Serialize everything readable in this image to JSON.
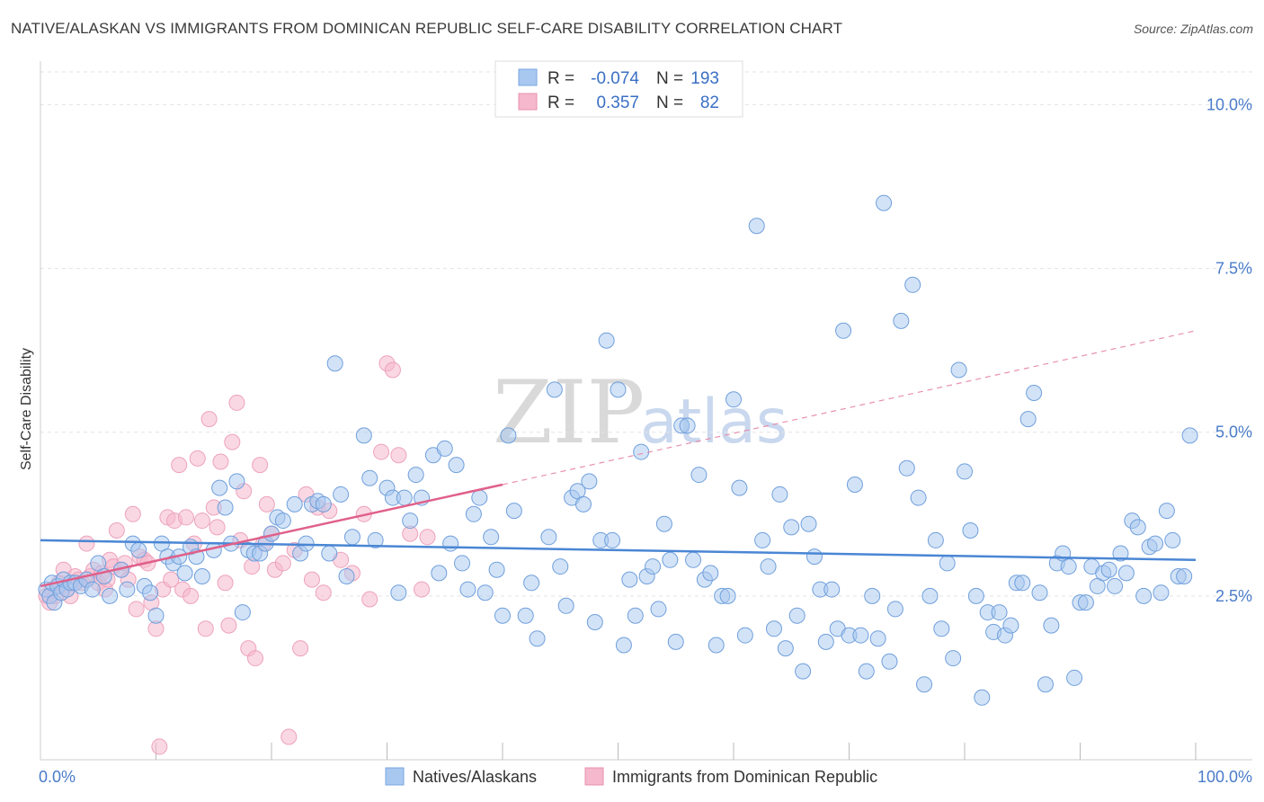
{
  "title": "NATIVE/ALASKAN VS IMMIGRANTS FROM DOMINICAN REPUBLIC SELF-CARE DISABILITY CORRELATION CHART",
  "source": "Source: ZipAtlas.com",
  "watermark": {
    "zip": "ZIP",
    "atlas": "atlas"
  },
  "legend_top": {
    "rows": [
      {
        "r_label": "R =",
        "r_value": "-0.074",
        "n_label": "N =",
        "n_value": "193",
        "color": "#a8c8f0"
      },
      {
        "r_label": "R =",
        "r_value": "0.357",
        "n_label": "N =",
        "n_value": "82",
        "color": "#f5b8cc"
      }
    ]
  },
  "legend_bottom": {
    "items": [
      {
        "label": "Natives/Alaskans",
        "color": "#a8c8f0"
      },
      {
        "label": "Immigrants from Dominican Republic",
        "color": "#f5b8cc"
      }
    ]
  },
  "chart_data": {
    "type": "scatter",
    "ylabel": "Self-Care Disability",
    "xlim": [
      0,
      100
    ],
    "ylim": [
      0,
      10.5
    ],
    "x_tick_labels": {
      "left": "0.0%",
      "right": "100.0%"
    },
    "y_ticks": [
      {
        "value": 2.5,
        "label": "2.5%"
      },
      {
        "value": 5.0,
        "label": "5.0%"
      },
      {
        "value": 7.5,
        "label": "7.5%"
      },
      {
        "value": 10.0,
        "label": "10.0%"
      }
    ],
    "colors": {
      "blue": "#4a86d4",
      "blue_fill": "#a8c8f0",
      "pink": "#e0608a",
      "pink_fill": "#f5b8cc"
    },
    "series": [
      {
        "name": "Natives/Alaskans",
        "trend": {
          "x0": 0,
          "y0": 3.35,
          "x1": 100,
          "y1": 3.05
        },
        "points": [
          [
            0.5,
            2.6
          ],
          [
            0.8,
            2.5
          ],
          [
            1.0,
            2.7
          ],
          [
            1.2,
            2.4
          ],
          [
            1.5,
            2.65
          ],
          [
            1.8,
            2.55
          ],
          [
            2.0,
            2.75
          ],
          [
            2.3,
            2.6
          ],
          [
            2.6,
            2.7
          ],
          [
            3.0,
            2.7
          ],
          [
            3.5,
            2.65
          ],
          [
            4.0,
            2.75
          ],
          [
            4.5,
            2.6
          ],
          [
            5.0,
            3.0
          ],
          [
            5.5,
            2.8
          ],
          [
            6.0,
            2.5
          ],
          [
            7.0,
            2.9
          ],
          [
            7.5,
            2.6
          ],
          [
            8.0,
            3.3
          ],
          [
            8.5,
            3.2
          ],
          [
            9.0,
            2.65
          ],
          [
            9.5,
            2.55
          ],
          [
            10.0,
            2.2
          ],
          [
            10.5,
            3.3
          ],
          [
            11.0,
            3.1
          ],
          [
            11.5,
            3.0
          ],
          [
            12.0,
            3.1
          ],
          [
            12.5,
            2.85
          ],
          [
            13.0,
            3.25
          ],
          [
            13.5,
            3.1
          ],
          [
            14.0,
            2.8
          ],
          [
            15.0,
            3.2
          ],
          [
            15.5,
            4.15
          ],
          [
            16.0,
            3.85
          ],
          [
            16.5,
            3.3
          ],
          [
            17.0,
            4.25
          ],
          [
            17.5,
            2.25
          ],
          [
            18.0,
            3.2
          ],
          [
            18.5,
            3.15
          ],
          [
            19.0,
            3.15
          ],
          [
            19.5,
            3.3
          ],
          [
            20.0,
            3.45
          ],
          [
            20.5,
            3.7
          ],
          [
            21.0,
            3.65
          ],
          [
            22.0,
            3.9
          ],
          [
            22.5,
            3.15
          ],
          [
            23.0,
            3.3
          ],
          [
            23.5,
            3.9
          ],
          [
            24.0,
            3.95
          ],
          [
            24.5,
            3.9
          ],
          [
            25.0,
            3.15
          ],
          [
            25.5,
            6.05
          ],
          [
            26.0,
            4.05
          ],
          [
            26.5,
            2.8
          ],
          [
            27.0,
            3.4
          ],
          [
            28.0,
            4.95
          ],
          [
            28.5,
            4.3
          ],
          [
            29.0,
            3.35
          ],
          [
            30.0,
            4.15
          ],
          [
            30.5,
            4.0
          ],
          [
            31.0,
            2.55
          ],
          [
            31.5,
            4.0
          ],
          [
            32.0,
            3.65
          ],
          [
            32.5,
            4.35
          ],
          [
            33.0,
            4.0
          ],
          [
            34.0,
            4.65
          ],
          [
            34.5,
            2.85
          ],
          [
            35.0,
            4.75
          ],
          [
            35.5,
            3.3
          ],
          [
            36.0,
            4.5
          ],
          [
            36.5,
            3.0
          ],
          [
            37.0,
            2.6
          ],
          [
            37.5,
            3.75
          ],
          [
            38.0,
            4.0
          ],
          [
            38.5,
            2.55
          ],
          [
            39.0,
            3.4
          ],
          [
            39.5,
            2.9
          ],
          [
            40.0,
            2.2
          ],
          [
            40.5,
            4.95
          ],
          [
            41.0,
            3.8
          ],
          [
            42.0,
            2.2
          ],
          [
            42.5,
            2.7
          ],
          [
            43.0,
            1.85
          ],
          [
            44.0,
            3.4
          ],
          [
            44.5,
            5.65
          ],
          [
            45.0,
            2.95
          ],
          [
            45.5,
            2.35
          ],
          [
            46.0,
            4.0
          ],
          [
            46.5,
            4.1
          ],
          [
            47.0,
            3.9
          ],
          [
            47.5,
            4.25
          ],
          [
            48.0,
            2.1
          ],
          [
            48.5,
            3.35
          ],
          [
            49.0,
            6.4
          ],
          [
            49.5,
            3.35
          ],
          [
            50.0,
            5.65
          ],
          [
            50.5,
            1.75
          ],
          [
            51.0,
            2.75
          ],
          [
            51.5,
            2.2
          ],
          [
            52.0,
            4.7
          ],
          [
            52.5,
            2.8
          ],
          [
            53.0,
            2.95
          ],
          [
            53.5,
            2.3
          ],
          [
            54.0,
            3.6
          ],
          [
            54.5,
            3.05
          ],
          [
            55.0,
            1.8
          ],
          [
            55.5,
            5.1
          ],
          [
            56.0,
            5.1
          ],
          [
            56.5,
            3.05
          ],
          [
            57.0,
            4.35
          ],
          [
            57.5,
            2.75
          ],
          [
            58.0,
            2.85
          ],
          [
            58.5,
            1.75
          ],
          [
            59.0,
            2.5
          ],
          [
            59.5,
            2.5
          ],
          [
            60.0,
            5.5
          ],
          [
            60.5,
            4.15
          ],
          [
            61.0,
            1.9
          ],
          [
            62.0,
            8.15
          ],
          [
            62.5,
            3.35
          ],
          [
            63.0,
            2.95
          ],
          [
            63.5,
            2.0
          ],
          [
            64.0,
            4.05
          ],
          [
            64.5,
            1.7
          ],
          [
            65.0,
            3.55
          ],
          [
            65.5,
            2.2
          ],
          [
            66.0,
            1.35
          ],
          [
            66.5,
            3.6
          ],
          [
            67.0,
            3.1
          ],
          [
            67.5,
            2.6
          ],
          [
            68.0,
            1.8
          ],
          [
            68.5,
            2.6
          ],
          [
            69.0,
            2.0
          ],
          [
            69.5,
            6.55
          ],
          [
            70.0,
            1.9
          ],
          [
            70.5,
            4.2
          ],
          [
            71.0,
            1.9
          ],
          [
            71.5,
            1.35
          ],
          [
            72.0,
            2.5
          ],
          [
            72.5,
            1.85
          ],
          [
            73.0,
            8.5
          ],
          [
            73.5,
            1.5
          ],
          [
            74.0,
            2.3
          ],
          [
            74.5,
            6.7
          ],
          [
            75.0,
            4.45
          ],
          [
            75.5,
            7.25
          ],
          [
            76.0,
            4.0
          ],
          [
            76.5,
            1.15
          ],
          [
            77.0,
            2.5
          ],
          [
            77.5,
            3.35
          ],
          [
            78.0,
            2.0
          ],
          [
            78.5,
            3.0
          ],
          [
            79.0,
            1.55
          ],
          [
            79.5,
            5.95
          ],
          [
            80.0,
            4.4
          ],
          [
            80.5,
            3.5
          ],
          [
            81.0,
            2.5
          ],
          [
            81.5,
            0.95
          ],
          [
            82.0,
            2.25
          ],
          [
            82.5,
            1.95
          ],
          [
            83.0,
            2.25
          ],
          [
            83.5,
            1.9
          ],
          [
            84.0,
            2.05
          ],
          [
            84.5,
            2.7
          ],
          [
            85.0,
            2.7
          ],
          [
            85.5,
            5.2
          ],
          [
            86.0,
            5.6
          ],
          [
            86.5,
            2.55
          ],
          [
            87.0,
            1.15
          ],
          [
            87.5,
            2.05
          ],
          [
            88.0,
            3.0
          ],
          [
            88.5,
            3.15
          ],
          [
            89.0,
            2.95
          ],
          [
            89.5,
            1.25
          ],
          [
            90.0,
            2.4
          ],
          [
            90.5,
            2.4
          ],
          [
            91.0,
            2.95
          ],
          [
            91.5,
            2.65
          ],
          [
            92.0,
            2.85
          ],
          [
            92.5,
            2.9
          ],
          [
            93.0,
            2.65
          ],
          [
            93.5,
            3.15
          ],
          [
            94.0,
            2.85
          ],
          [
            94.5,
            3.65
          ],
          [
            95.0,
            3.55
          ],
          [
            95.5,
            2.5
          ],
          [
            96.0,
            3.25
          ],
          [
            96.5,
            3.3
          ],
          [
            97.0,
            2.55
          ],
          [
            97.5,
            3.8
          ],
          [
            98.0,
            3.35
          ],
          [
            98.5,
            2.8
          ],
          [
            99.0,
            2.8
          ],
          [
            99.5,
            4.95
          ]
        ]
      },
      {
        "name": "Immigrants from Dominican Republic",
        "trend": {
          "x0": 0,
          "y0": 2.65,
          "x1": 40,
          "y1": 4.2
        },
        "trend_dashed": {
          "x0": 40,
          "y0": 4.2,
          "x1": 100,
          "y1": 6.55
        },
        "points": [
          [
            0.5,
            2.5
          ],
          [
            0.8,
            2.4
          ],
          [
            1.0,
            2.6
          ],
          [
            1.3,
            2.5
          ],
          [
            1.6,
            2.7
          ],
          [
            2.0,
            2.9
          ],
          [
            2.3,
            2.6
          ],
          [
            2.6,
            2.5
          ],
          [
            3.0,
            2.8
          ],
          [
            3.3,
            2.75
          ],
          [
            3.6,
            2.7
          ],
          [
            4.0,
            3.3
          ],
          [
            4.3,
            2.8
          ],
          [
            4.6,
            2.9
          ],
          [
            5.0,
            2.7
          ],
          [
            5.3,
            2.85
          ],
          [
            5.6,
            2.6
          ],
          [
            5.8,
            2.75
          ],
          [
            6.0,
            3.05
          ],
          [
            6.3,
            2.95
          ],
          [
            6.6,
            3.5
          ],
          [
            7.0,
            2.9
          ],
          [
            7.3,
            3.0
          ],
          [
            7.6,
            2.75
          ],
          [
            8.0,
            3.75
          ],
          [
            8.3,
            2.3
          ],
          [
            8.6,
            3.1
          ],
          [
            9.0,
            3.05
          ],
          [
            9.3,
            3.0
          ],
          [
            9.6,
            2.4
          ],
          [
            10.0,
            2.0
          ],
          [
            10.3,
            0.2
          ],
          [
            10.6,
            2.6
          ],
          [
            11.0,
            3.7
          ],
          [
            11.3,
            2.75
          ],
          [
            11.6,
            3.65
          ],
          [
            12.0,
            4.5
          ],
          [
            12.3,
            2.6
          ],
          [
            12.6,
            3.7
          ],
          [
            13.0,
            2.5
          ],
          [
            13.3,
            3.3
          ],
          [
            13.6,
            4.6
          ],
          [
            14.0,
            3.65
          ],
          [
            14.3,
            2.0
          ],
          [
            14.6,
            5.2
          ],
          [
            15.0,
            3.85
          ],
          [
            15.3,
            3.55
          ],
          [
            15.6,
            4.55
          ],
          [
            16.0,
            2.7
          ],
          [
            16.3,
            2.05
          ],
          [
            16.6,
            4.85
          ],
          [
            17.0,
            5.45
          ],
          [
            17.3,
            3.35
          ],
          [
            17.6,
            4.1
          ],
          [
            18.0,
            1.7
          ],
          [
            18.3,
            2.95
          ],
          [
            18.6,
            1.55
          ],
          [
            19.0,
            4.5
          ],
          [
            19.3,
            3.3
          ],
          [
            19.6,
            3.9
          ],
          [
            20.0,
            3.45
          ],
          [
            20.3,
            2.9
          ],
          [
            21.0,
            3.0
          ],
          [
            21.5,
            0.35
          ],
          [
            22.0,
            3.2
          ],
          [
            22.5,
            1.7
          ],
          [
            23.0,
            4.05
          ],
          [
            23.5,
            2.75
          ],
          [
            24.0,
            3.85
          ],
          [
            24.5,
            2.55
          ],
          [
            25.0,
            3.8
          ],
          [
            26.0,
            3.05
          ],
          [
            27.0,
            2.85
          ],
          [
            28.0,
            3.75
          ],
          [
            28.5,
            2.45
          ],
          [
            29.5,
            4.7
          ],
          [
            30.0,
            6.05
          ],
          [
            30.5,
            5.95
          ],
          [
            31.0,
            4.65
          ],
          [
            32.0,
            3.45
          ],
          [
            33.0,
            2.6
          ],
          [
            33.5,
            3.4
          ]
        ]
      }
    ]
  }
}
